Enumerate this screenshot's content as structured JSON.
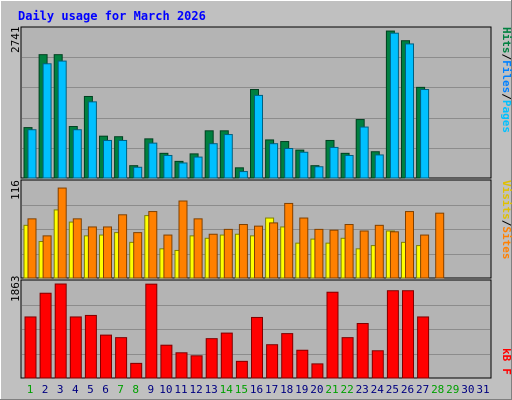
{
  "title": "Daily usage for March 2026",
  "chart_data": [
    {
      "type": "bar",
      "panel": "hits-files-pages",
      "ymax_label": "2741",
      "ylim": [
        0,
        2741
      ],
      "grid": true,
      "legend": [
        "Pages",
        "/",
        "Files",
        "/",
        "Hits"
      ],
      "categories": [
        "1",
        "2",
        "3",
        "4",
        "5",
        "6",
        "7",
        "8",
        "9",
        "10",
        "11",
        "12",
        "13",
        "14",
        "15",
        "16",
        "17",
        "18",
        "19",
        "20",
        "21",
        "22",
        "23",
        "24",
        "25",
        "26",
        "27",
        "28",
        "29",
        "30",
        "31"
      ],
      "series": [
        {
          "name": "Hits",
          "color": "#008040",
          "values": [
            940,
            2300,
            2300,
            960,
            1520,
            780,
            770,
            230,
            730,
            460,
            310,
            450,
            880,
            880,
            190,
            1650,
            710,
            680,
            520,
            230,
            700,
            460,
            1090,
            490,
            2740,
            2560,
            1690,
            0,
            0,
            0,
            0
          ]
        },
        {
          "name": "Files",
          "color": "#00c0ff",
          "values": [
            900,
            2130,
            2180,
            900,
            1420,
            700,
            700,
            200,
            650,
            420,
            280,
            390,
            640,
            810,
            120,
            1540,
            640,
            550,
            480,
            210,
            570,
            420,
            950,
            430,
            2700,
            2500,
            1650,
            0,
            0,
            0,
            0
          ]
        }
      ]
    },
    {
      "type": "bar",
      "panel": "visits-sites",
      "ymax_label": "116",
      "ylim": [
        0,
        116
      ],
      "grid": true,
      "legend": [
        "Sites",
        "/",
        "Visits"
      ],
      "categories": [
        "1",
        "2",
        "3",
        "4",
        "5",
        "6",
        "7",
        "8",
        "9",
        "10",
        "11",
        "12",
        "13",
        "14",
        "15",
        "16",
        "17",
        "18",
        "19",
        "20",
        "21",
        "22",
        "23",
        "24",
        "25",
        "26",
        "27",
        "28",
        "29",
        "30",
        "31"
      ],
      "series": [
        {
          "name": "Visits",
          "color": "#ffff00",
          "values": [
            65,
            45,
            84,
            69,
            52,
            53,
            56,
            44,
            77,
            36,
            34,
            52,
            49,
            53,
            54,
            52,
            74,
            63,
            43,
            48,
            43,
            49,
            36,
            40,
            58,
            44,
            40,
            0,
            0,
            0,
            0
          ]
        },
        {
          "name": "Sites",
          "color": "#ff8000",
          "values": [
            73,
            52,
            111,
            73,
            63,
            63,
            78,
            56,
            82,
            53,
            95,
            73,
            54,
            60,
            66,
            64,
            68,
            92,
            74,
            60,
            59,
            66,
            58,
            65,
            57,
            82,
            53,
            80,
            0,
            0,
            0
          ]
        }
      ]
    },
    {
      "type": "bar",
      "panel": "kbytes",
      "ymax_label": "1863",
      "ylim": [
        0,
        1863
      ],
      "grid": true,
      "legend": [
        "kB",
        "F"
      ],
      "categories": [
        "1",
        "2",
        "3",
        "4",
        "5",
        "6",
        "7",
        "8",
        "9",
        "10",
        "11",
        "12",
        "13",
        "14",
        "15",
        "16",
        "17",
        "18",
        "19",
        "20",
        "21",
        "22",
        "23",
        "24",
        "25",
        "26",
        "27",
        "28",
        "29",
        "30",
        "31"
      ],
      "series": [
        {
          "name": "kB F",
          "color": "#ff0000",
          "values": [
            1210,
            1680,
            1863,
            1210,
            1240,
            850,
            800,
            290,
            1860,
            650,
            500,
            440,
            780,
            890,
            330,
            1200,
            660,
            880,
            550,
            280,
            1700,
            800,
            1080,
            540,
            1730,
            1730,
            1210,
            0,
            0,
            0,
            0
          ]
        }
      ]
    }
  ],
  "xaxis_labels": [
    "1",
    "2",
    "3",
    "4",
    "5",
    "6",
    "7",
    "8",
    "9",
    "10",
    "11",
    "12",
    "13",
    "14",
    "15",
    "16",
    "17",
    "18",
    "19",
    "20",
    "21",
    "22",
    "23",
    "24",
    "25",
    "26",
    "27",
    "28",
    "29",
    "30",
    "31"
  ],
  "weekend_days": [
    1,
    7,
    8,
    14,
    15,
    21,
    22,
    28,
    29
  ],
  "colors": {
    "title": "#0000ff",
    "weekday_label": "#000080",
    "weekend_label": "#00a000"
  }
}
